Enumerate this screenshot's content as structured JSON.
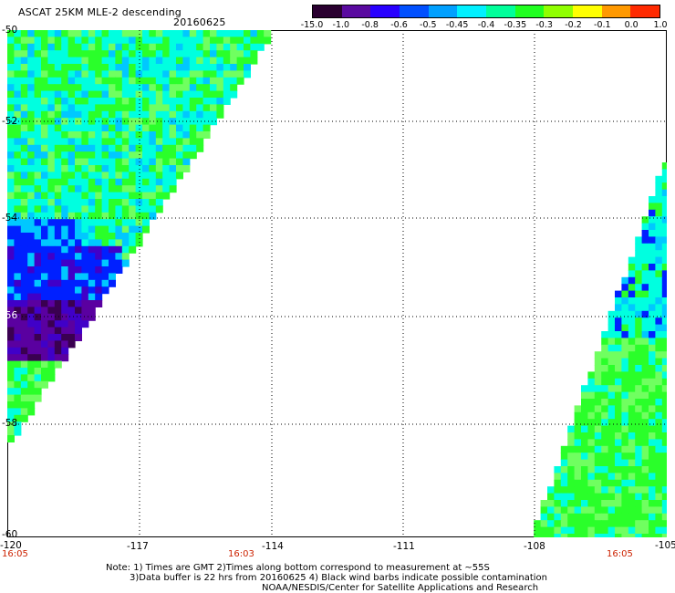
{
  "header": {
    "title": "ASCAT 25KM MLE-2 descending",
    "date": "20160625"
  },
  "colorbar": {
    "ticks": [
      "-15.0",
      "-1.0",
      "-0.8",
      "-0.6",
      "-0.5",
      "-0.45",
      "-0.4",
      "-0.35",
      "-0.3",
      "-0.2",
      "-0.1",
      "0.0",
      "1.0"
    ],
    "colors": [
      "#2a0030",
      "#5a0aa0",
      "#2800ff",
      "#0050ff",
      "#00a0ff",
      "#00f0ff",
      "#00ff9a",
      "#20ff20",
      "#90ff00",
      "#ffff00",
      "#ff9900",
      "#ff2a00"
    ]
  },
  "map": {
    "lon_labels": [
      "-120",
      "-117",
      "-114",
      "-111",
      "-108",
      "-105"
    ],
    "lat_labels": [
      "-50",
      "-52",
      "-54",
      "-56",
      "-58",
      "-60"
    ],
    "grid": "dotted",
    "swath_colors": {
      "green": "#2aff2a",
      "light_green": "#70ff60",
      "cyan": "#00ffe0",
      "sky": "#00c8ff",
      "blue": "#0020ff",
      "indigo": "#4000c8",
      "purple": "#5a00a0",
      "dark_purple": "#3a0050"
    }
  },
  "times": {
    "bottom_left": "16:05",
    "bottom_mid": "16:03",
    "bottom_right": "16:05"
  },
  "notes": {
    "line1": "Note: 1) Times are GMT 2)Times along bottom correspond to measurement at ~55S",
    "line2": "3)Data buffer is 22 hrs from 20160625 4) Black wind barbs indicate possible contamination",
    "line3": "NOAA/NESDIS/Center for Satellite Applications and Research"
  }
}
